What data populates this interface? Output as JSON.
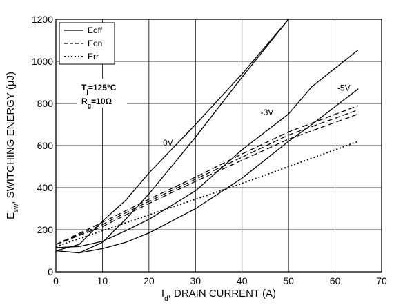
{
  "chart_data": {
    "type": "line",
    "xlabel": {
      "main": "I",
      "sub": "d",
      "rest": ", DRAIN CURRENT (A)"
    },
    "ylabel": {
      "main": "E",
      "sub": "sw",
      "rest": ", SWITCHING ENERGY (μJ)"
    },
    "xlim": [
      0,
      70
    ],
    "ylim": [
      0,
      1200
    ],
    "xticks": [
      "0",
      "10",
      "20",
      "30",
      "40",
      "50",
      "60",
      "70"
    ],
    "yticks": [
      "0",
      "200",
      "400",
      "600",
      "800",
      "1000",
      "1200"
    ],
    "grid": true,
    "legend": {
      "placement": "top-left",
      "entries": [
        {
          "label": "Eoff",
          "style": "solid"
        },
        {
          "label": "Eon",
          "style": "dashed"
        },
        {
          "label": "Err",
          "style": "dotted"
        }
      ]
    },
    "conditions": [
      {
        "main": "T",
        "sub": "j",
        "rest": "=125°C"
      },
      {
        "main": "R",
        "sub": "g",
        "rest": "=10Ω"
      }
    ],
    "series": [
      {
        "style": "solid",
        "label": "0V",
        "label_at": [
          23,
          600
        ],
        "points": [
          [
            0,
            100
          ],
          [
            5,
            90
          ],
          [
            10,
            140
          ],
          [
            15,
            250
          ],
          [
            20,
            370
          ],
          [
            30,
            640
          ],
          [
            40,
            925
          ],
          [
            50,
            1200
          ]
        ]
      },
      {
        "style": "solid",
        "label": "-3V",
        "label_at": [
          44,
          745
        ],
        "points": [
          [
            0,
            100
          ],
          [
            5,
            130
          ],
          [
            10,
            240
          ],
          [
            15,
            340
          ],
          [
            20,
            470
          ],
          [
            30,
            700
          ],
          [
            40,
            940
          ],
          [
            50,
            1200
          ],
          [
            55,
            1290
          ]
        ]
      },
      {
        "style": "solid",
        "label": "-5V",
        "label_at": [
          60.5,
          860
        ],
        "points": [
          [
            0,
            100
          ],
          [
            5,
            90
          ],
          [
            10,
            110
          ],
          [
            15,
            140
          ],
          [
            20,
            185
          ],
          [
            30,
            300
          ],
          [
            40,
            445
          ],
          [
            50,
            620
          ],
          [
            55,
            700
          ],
          [
            65,
            870
          ]
        ]
      },
      {
        "style": "solid",
        "points": [
          [
            0,
            115
          ],
          [
            5,
            120
          ],
          [
            10,
            145
          ],
          [
            15,
            195
          ],
          [
            20,
            250
          ],
          [
            30,
            385
          ],
          [
            40,
            580
          ],
          [
            50,
            750
          ],
          [
            55,
            880
          ],
          [
            65,
            1055
          ]
        ]
      },
      {
        "style": "dashed",
        "points": [
          [
            0,
            130
          ],
          [
            10,
            235
          ],
          [
            20,
            345
          ],
          [
            30,
            450
          ],
          [
            40,
            560
          ],
          [
            50,
            665
          ],
          [
            65,
            790
          ]
        ]
      },
      {
        "style": "dashed",
        "points": [
          [
            0,
            130
          ],
          [
            10,
            225
          ],
          [
            20,
            335
          ],
          [
            30,
            440
          ],
          [
            40,
            545
          ],
          [
            50,
            650
          ],
          [
            65,
            770
          ]
        ]
      },
      {
        "style": "dashed",
        "points": [
          [
            0,
            130
          ],
          [
            10,
            215
          ],
          [
            20,
            325
          ],
          [
            30,
            430
          ],
          [
            40,
            530
          ],
          [
            50,
            630
          ],
          [
            65,
            750
          ]
        ]
      },
      {
        "style": "dotted",
        "points": [
          [
            0,
            120
          ],
          [
            10,
            195
          ],
          [
            20,
            270
          ],
          [
            30,
            345
          ],
          [
            40,
            420
          ],
          [
            50,
            500
          ],
          [
            60,
            580
          ],
          [
            65,
            620
          ]
        ]
      }
    ]
  }
}
